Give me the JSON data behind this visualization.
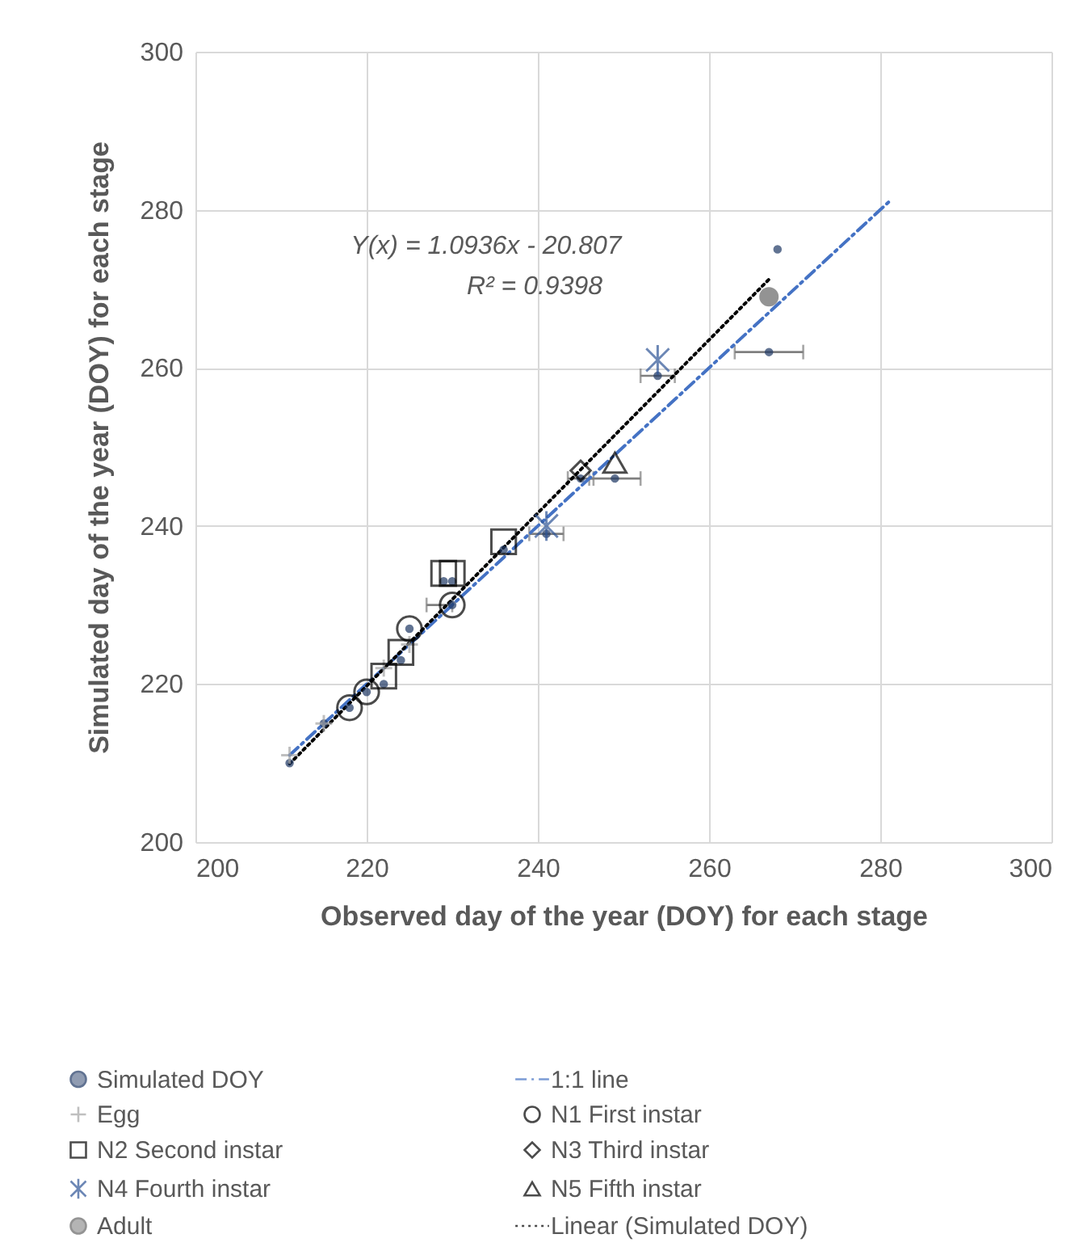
{
  "chart_data": {
    "type": "scatter",
    "xlabel": "Observed  day of the year (DOY) for each stage",
    "ylabel": "Simulated day of the year (DOY) for each stage",
    "xlim": [
      200,
      300
    ],
    "ylim": [
      200,
      300
    ],
    "xticks": [
      200,
      220,
      240,
      260,
      280,
      300
    ],
    "yticks": [
      200,
      220,
      240,
      260,
      280,
      300
    ],
    "grid": true,
    "legend": "bottom",
    "annotations": [
      "Y(x) = 1.0936x - 20.807",
      "R² = 0.9398"
    ],
    "series": [
      {
        "name": "Simulated DOY",
        "marker": "circle",
        "color": "#1f3864",
        "x": [
          211,
          215,
          218,
          220,
          222,
          224,
          225,
          229,
          230,
          230,
          236,
          241,
          245,
          249,
          254,
          267,
          268
        ],
        "values": [
          210,
          215,
          217,
          219,
          220,
          223,
          227,
          233,
          233,
          230,
          237,
          239,
          246,
          246,
          259,
          262,
          275
        ],
        "xerrors": [
          null,
          null,
          null,
          null,
          null,
          null,
          null,
          null,
          null,
          [
            227,
            230
          ],
          null,
          2,
          1.5,
          3,
          2,
          4,
          null
        ]
      },
      {
        "name": "1:1 line",
        "type": "line",
        "line_style": "dashed",
        "color": "#4472c4",
        "x": [
          211,
          281
        ],
        "values": [
          211,
          281
        ]
      },
      {
        "name": "Egg",
        "marker": "cross",
        "color": "#a5a5a5",
        "x": [
          211,
          215,
          222,
          225
        ],
        "values": [
          211,
          215,
          222,
          225
        ]
      },
      {
        "name": "N1 First instar",
        "marker": "circle",
        "color": "#000000",
        "x": [
          218,
          220,
          225,
          230
        ],
        "values": [
          217,
          219,
          227,
          230
        ]
      },
      {
        "name": "N2 Second instar",
        "marker": "square",
        "color": "#000000",
        "x": [
          222,
          224,
          229,
          230,
          236
        ],
        "values": [
          221,
          224,
          234,
          234,
          238
        ]
      },
      {
        "name": "N3 Third instar",
        "marker": "diamond",
        "color": "#000000",
        "x": [
          245
        ],
        "values": [
          247
        ]
      },
      {
        "name": "N4 Fourth instar",
        "color": "#2f5597",
        "x": [
          241,
          254
        ],
        "values": [
          240,
          261
        ]
      },
      {
        "name": "N5 Fifth instar",
        "marker": "triangle",
        "color": "#000000",
        "x": [
          249
        ],
        "values": [
          248
        ]
      },
      {
        "name": "Adult",
        "marker": "circle",
        "color": "#666666",
        "x": [
          267
        ],
        "values": [
          269
        ]
      },
      {
        "name": "Linear (Simulated DOY)",
        "type": "line",
        "line_style": "dotted",
        "color": "#000000",
        "x": [
          211,
          267
        ],
        "values": [
          209.9,
          271.2
        ]
      }
    ]
  }
}
